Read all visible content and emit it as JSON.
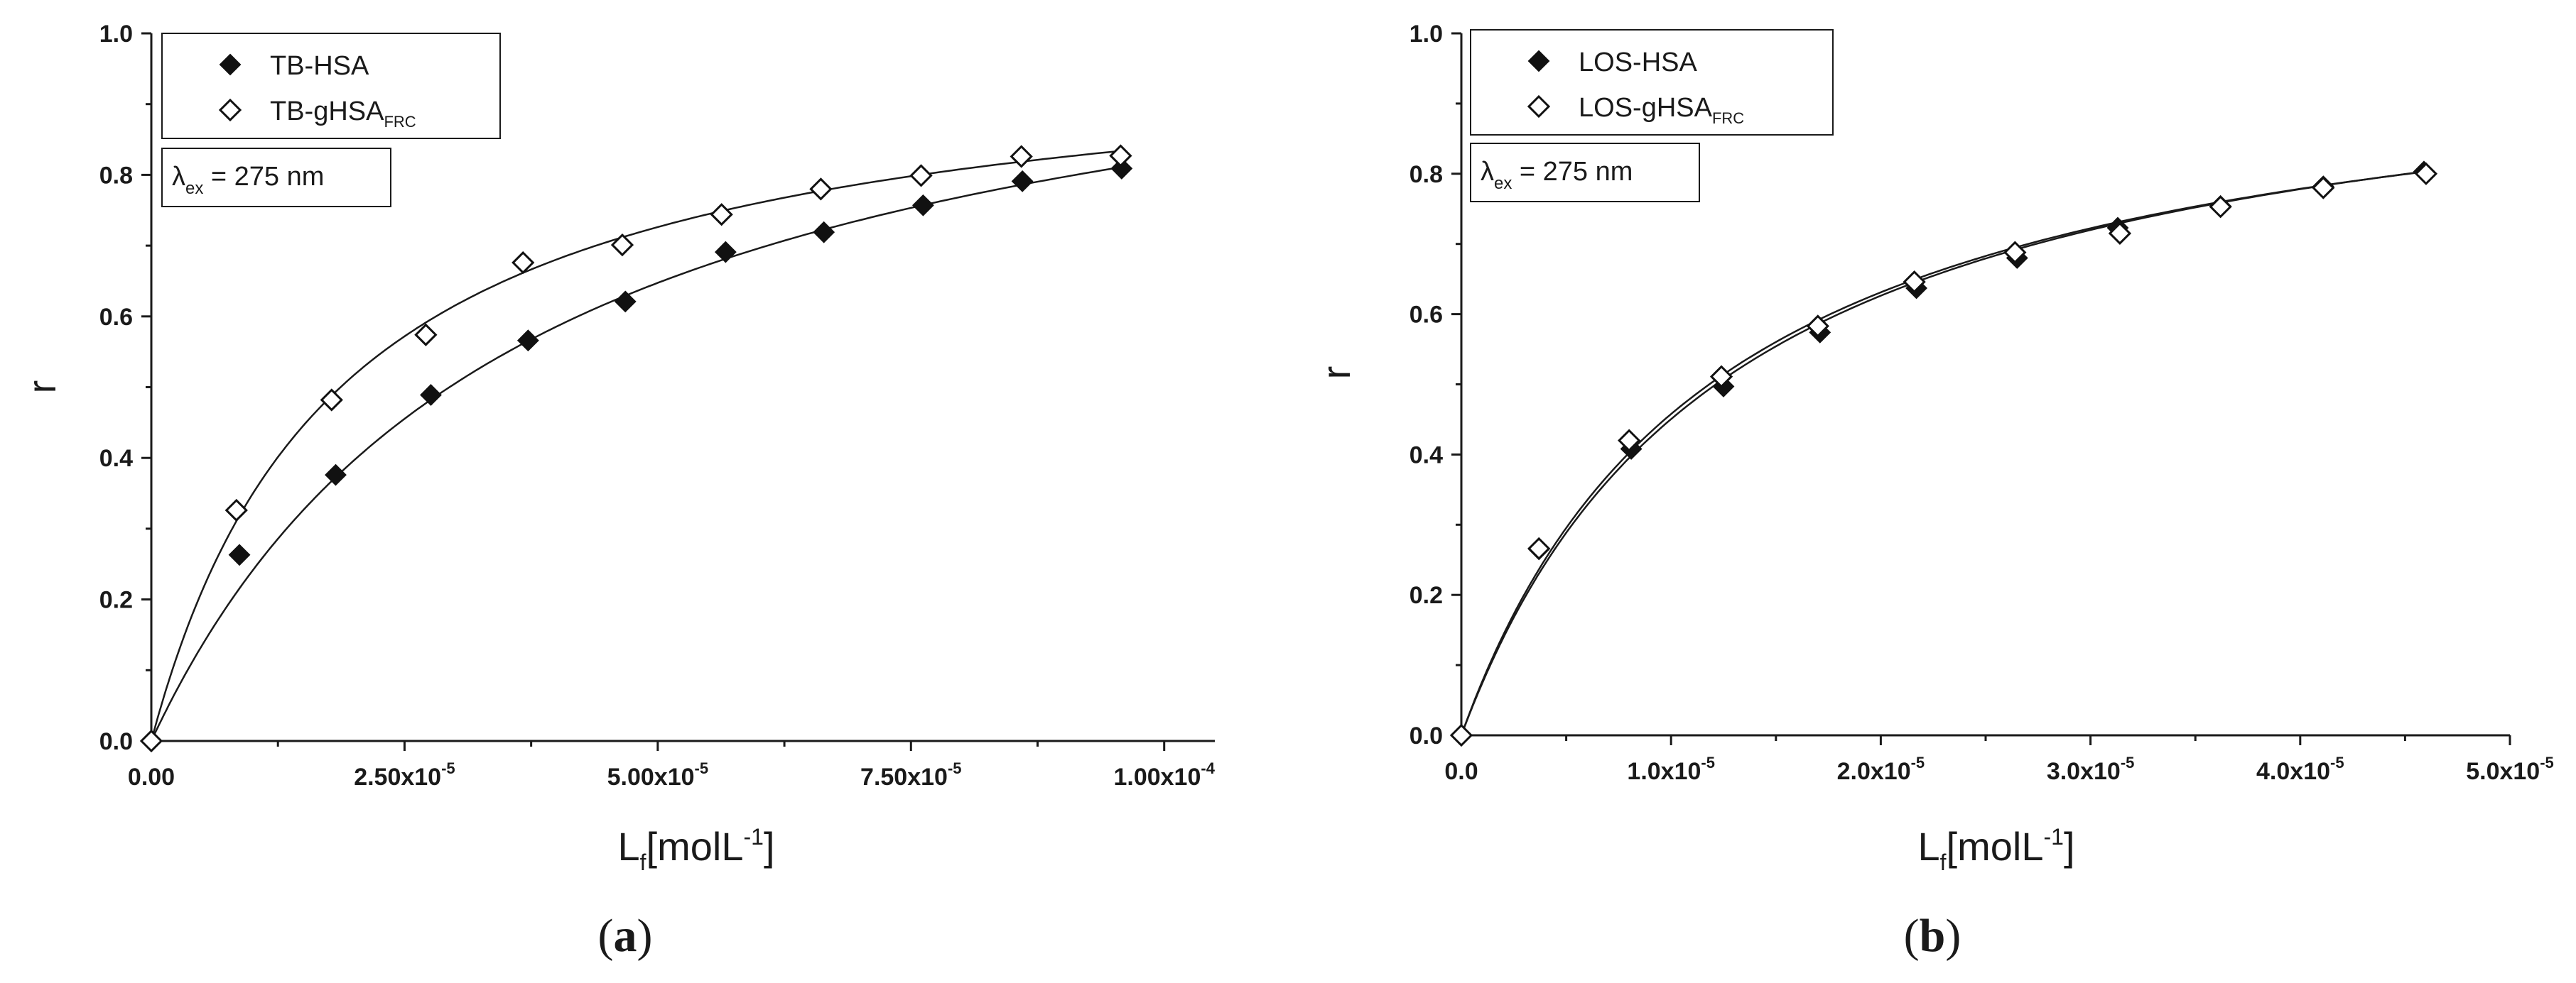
{
  "chart_data": [
    {
      "panel": "a",
      "panel_label": "a",
      "type": "scatter",
      "xlabel": "L",
      "xlabel_sub": "f",
      "xlabel_unit": "[molL",
      "xlabel_unit_sup": "-1",
      "xlabel_unit_close": "]",
      "ylabel": "r",
      "xlim": [
        0,
        0.000105
      ],
      "ylim": [
        0,
        1.0
      ],
      "xticks": [
        0,
        2.5e-05,
        5e-05,
        7.5e-05,
        0.0001
      ],
      "xtick_labels": [
        {
          "mant": "0.00",
          "exp": ""
        },
        {
          "mant": "2.50x10",
          "exp": "-5"
        },
        {
          "mant": "5.00x10",
          "exp": "-5"
        },
        {
          "mant": "7.50x10",
          "exp": "-5"
        },
        {
          "mant": "1.00x10",
          "exp": "-4"
        }
      ],
      "yticks": [
        0,
        0.2,
        0.4,
        0.6,
        0.8,
        1.0
      ],
      "ytick_labels": [
        "0.0",
        "0.2",
        "0.4",
        "0.6",
        "0.8",
        "1.0"
      ],
      "legend_position": "top-left",
      "excitation": {
        "symbol": "λ",
        "sub": "ex",
        "text": " = 275 nm"
      },
      "series": [
        {
          "name": "TB-HSA",
          "name_sub": "",
          "marker": "filled-diamond",
          "x": [
            0,
            8.7e-06,
            1.82e-05,
            2.76e-05,
            3.72e-05,
            4.68e-05,
            5.67e-05,
            6.64e-05,
            7.62e-05,
            8.6e-05,
            9.58e-05
          ],
          "y": [
            0.0,
            0.263,
            0.376,
            0.489,
            0.566,
            0.621,
            0.691,
            0.719,
            0.757,
            0.791,
            0.809
          ],
          "fit": {
            "bmax": 1.12,
            "k": 3.65e-05
          }
        },
        {
          "name": "TB-gHSA",
          "name_sub": "FRC",
          "marker": "open-diamond",
          "x": [
            0,
            8.4e-06,
            1.78e-05,
            2.71e-05,
            3.67e-05,
            4.65e-05,
            5.63e-05,
            6.61e-05,
            7.6e-05,
            8.59e-05,
            9.57e-05
          ],
          "y": [
            0.0,
            0.326,
            0.482,
            0.574,
            0.676,
            0.701,
            0.744,
            0.78,
            0.799,
            0.826,
            0.827
          ],
          "fit": {
            "bmax": 0.995,
            "k": 1.85e-05
          }
        }
      ]
    },
    {
      "panel": "b",
      "panel_label": "b",
      "type": "scatter",
      "xlabel": "L",
      "xlabel_sub": "f",
      "xlabel_unit": "[molL",
      "xlabel_unit_sup": "-1",
      "xlabel_unit_close": "]",
      "ylabel": "r",
      "xlim": [
        0,
        5e-05
      ],
      "ylim": [
        0,
        1.0
      ],
      "xticks": [
        0,
        1e-05,
        2e-05,
        3e-05,
        4e-05,
        5e-05
      ],
      "xtick_labels": [
        {
          "mant": "0.0",
          "exp": ""
        },
        {
          "mant": "1.0x10",
          "exp": "-5"
        },
        {
          "mant": "2.0x10",
          "exp": "-5"
        },
        {
          "mant": "3.0x10",
          "exp": "-5"
        },
        {
          "mant": "4.0x10",
          "exp": "-5"
        },
        {
          "mant": "5.0x10",
          "exp": "-5"
        }
      ],
      "yticks": [
        0,
        0.2,
        0.4,
        0.6,
        0.8,
        1.0
      ],
      "ytick_labels": [
        "0.0",
        "0.2",
        "0.4",
        "0.6",
        "0.8",
        "1.0"
      ],
      "legend_position": "top-left",
      "excitation": {
        "symbol": "λ",
        "sub": "ex",
        "text": " = 275 nm"
      },
      "series": [
        {
          "name": "LOS-HSA",
          "name_sub": "",
          "marker": "filled-diamond",
          "x": [
            0,
            3.7e-06,
            8.1e-06,
            1.25e-05,
            1.71e-05,
            2.17e-05,
            2.65e-05,
            3.13e-05,
            3.62e-05,
            4.11e-05,
            4.59e-05
          ],
          "y": [
            0.0,
            0.265,
            0.408,
            0.497,
            0.574,
            0.637,
            0.68,
            0.723,
            0.754,
            0.782,
            0.803
          ],
          "fit": {
            "bmax": 1.027,
            "k": 1.28e-05
          }
        },
        {
          "name": "LOS-gHSA",
          "name_sub": "FRC",
          "marker": "open-diamond",
          "x": [
            0,
            3.7e-06,
            8e-06,
            1.24e-05,
            1.7e-05,
            2.16e-05,
            2.64e-05,
            3.14e-05,
            3.62e-05,
            4.11e-05,
            4.6e-05
          ],
          "y": [
            0.0,
            0.266,
            0.42,
            0.511,
            0.583,
            0.646,
            0.688,
            0.715,
            0.753,
            0.78,
            0.8
          ],
          "fit": {
            "bmax": 1.016,
            "k": 1.22e-05
          }
        }
      ]
    }
  ]
}
